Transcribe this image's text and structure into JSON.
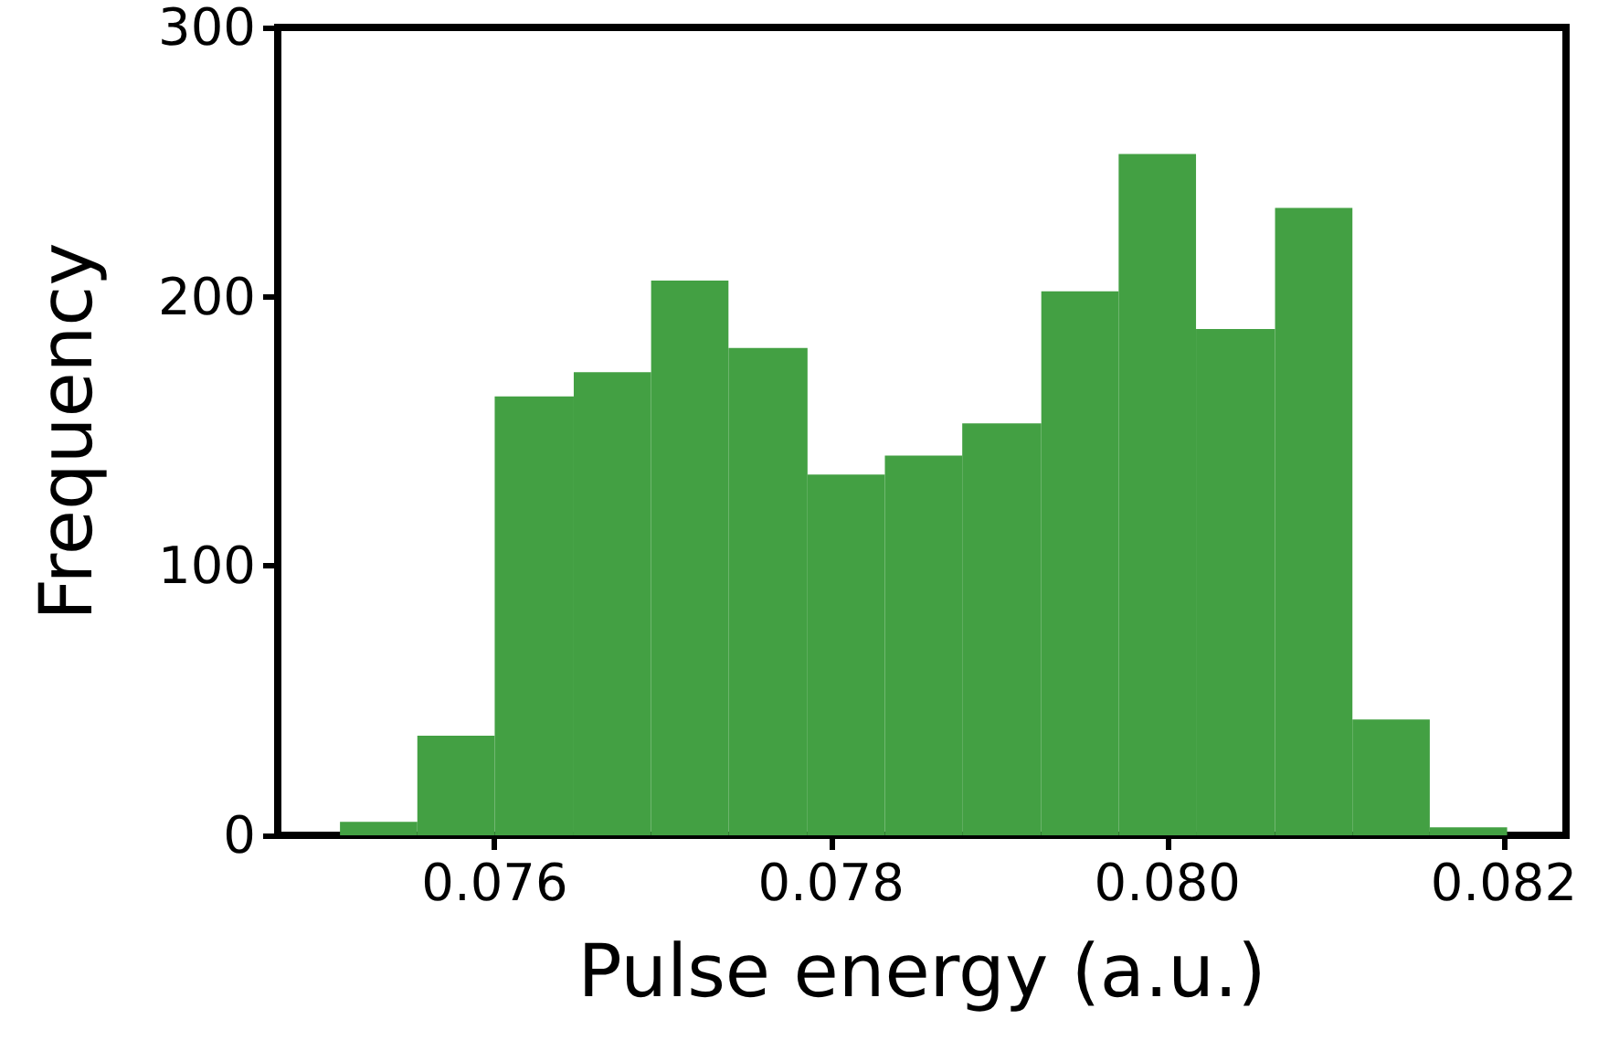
{
  "chart_data": {
    "type": "histogram",
    "xlabel": "Pulse energy (a.u.)",
    "ylabel": "Frequency",
    "bins": [
      0.07508,
      0.07554,
      0.076,
      0.07647,
      0.07693,
      0.07739,
      0.07786,
      0.07832,
      0.07878,
      0.07925,
      0.07971,
      0.08017,
      0.08064,
      0.0811,
      0.08156,
      0.08202
    ],
    "values": [
      5,
      37,
      163,
      172,
      206,
      181,
      134,
      141,
      153,
      202,
      253,
      188,
      233,
      43,
      3
    ],
    "color": "#43a043",
    "xlim": [
      0.07471,
      0.08237
    ],
    "xticks": [
      0.076,
      0.078,
      {
        "value": 0.08,
        "label": "0.080"
      },
      0.082
    ],
    "ylim": [
      0,
      300
    ],
    "yticks": [
      0,
      100,
      200,
      300
    ],
    "grid": false
  }
}
